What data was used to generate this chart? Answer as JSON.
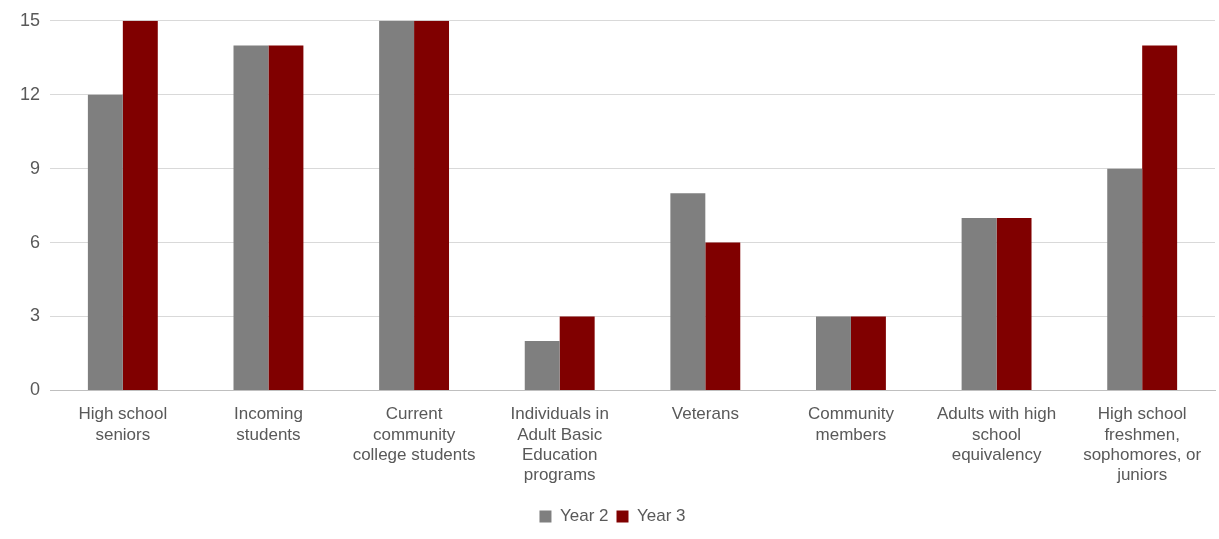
{
  "chart_data": {
    "type": "bar",
    "categories": [
      "High school seniors",
      "Incoming students",
      "Current community college students",
      "Individuals in Adult Basic Education programs",
      "Veterans",
      "Community members",
      "Adults with high school equivalency",
      "High school freshmen, sophomores, or juniors"
    ],
    "series": [
      {
        "name": "Year 2",
        "color": "#7f7f7f",
        "values": [
          12,
          14,
          15,
          2,
          8,
          3,
          7,
          9
        ]
      },
      {
        "name": "Year 3",
        "color": "#800000",
        "values": [
          15,
          14,
          15,
          3,
          6,
          3,
          7,
          14
        ]
      }
    ],
    "ylim": [
      0,
      15
    ],
    "yticks": [
      0,
      3,
      6,
      9,
      12,
      15
    ],
    "grid": "y",
    "legend": "bottom"
  }
}
